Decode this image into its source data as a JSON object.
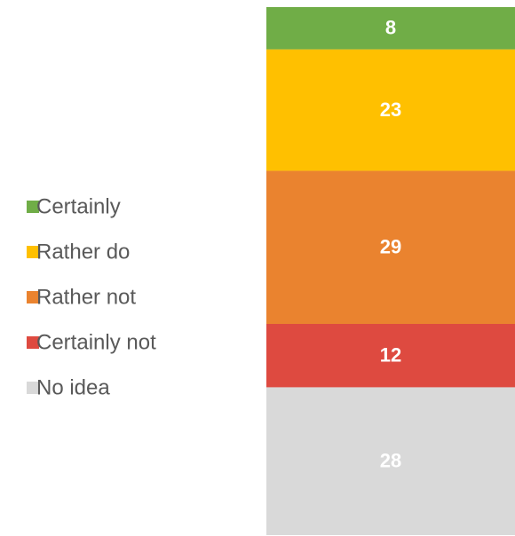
{
  "chart_data": {
    "type": "bar",
    "stacked": true,
    "categories": [
      null
    ],
    "ylim": [
      0,
      100
    ],
    "legend": "left",
    "series": [
      {
        "name": "Certainly",
        "color": "#70ad47",
        "values": [
          8
        ]
      },
      {
        "name": "Rather do",
        "color": "#ffc000",
        "values": [
          23
        ]
      },
      {
        "name": "Rather not",
        "color": "#ea832f",
        "values": [
          29
        ]
      },
      {
        "name": "Certainly not",
        "color": "#de4a40",
        "values": [
          12
        ]
      },
      {
        "name": "No idea",
        "color": "#d9d9d9",
        "values": [
          28
        ]
      }
    ]
  }
}
